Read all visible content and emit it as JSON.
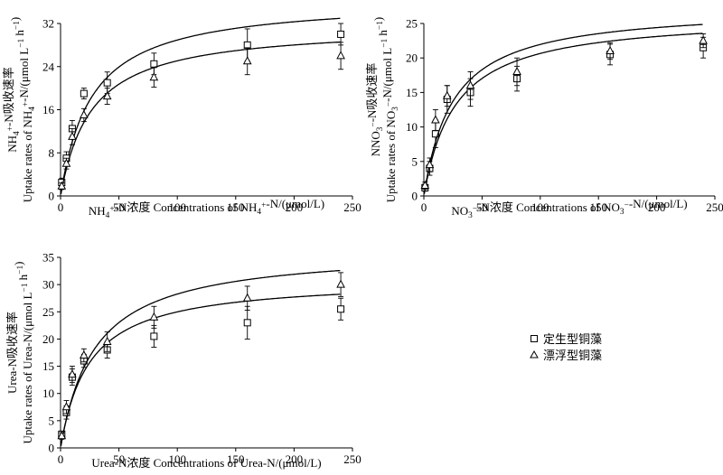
{
  "legend": {
    "items": [
      {
        "label": "定生型铜藻",
        "marker": "square"
      },
      {
        "label": "漂浮型铜藻",
        "marker": "triangle"
      }
    ]
  },
  "chart_data": [
    {
      "type": "scatter",
      "ylabel_lines": [
        "NH4+-N吸收速率",
        "Uptake rates of NH4+-N/(μmol L−1 h−1)"
      ],
      "xlabel": "NH4+-N浓度 Concentrations of NH4+-N/(μmol/L)",
      "xlim": [
        0,
        250
      ],
      "ylim": [
        0,
        32
      ],
      "xticks": [
        0,
        50,
        100,
        150,
        200,
        250
      ],
      "yticks": [
        0,
        8,
        16,
        24,
        32
      ],
      "x": [
        1,
        5,
        10,
        20,
        40,
        80,
        160,
        240
      ],
      "series": [
        {
          "marker": "square",
          "values": [
            2.5,
            7,
            12.5,
            19,
            21,
            24.5,
            28,
            30
          ],
          "errors": [
            0.8,
            1.2,
            1.5,
            1.0,
            2.0,
            2.0,
            3.0,
            2.0
          ],
          "fit": "curve"
        },
        {
          "marker": "triangle",
          "values": [
            1.8,
            6,
            11,
            15,
            18.5,
            22,
            25,
            26
          ],
          "errors": [
            0.6,
            1.0,
            1.5,
            1.2,
            1.5,
            1.8,
            2.5,
            2.5
          ],
          "fit": "curve"
        }
      ]
    },
    {
      "type": "scatter",
      "ylabel_lines": [
        "NNO3−-N吸收速率",
        "Uptake rates of NO3−-N/(μmol L−1 h−1)"
      ],
      "xlabel": "NO3−-N浓度 Concentrations of NO3−-N/(μmol/L)",
      "xlim": [
        0,
        250
      ],
      "ylim": [
        0,
        25
      ],
      "xticks": [
        0,
        50,
        100,
        150,
        200,
        250
      ],
      "yticks": [
        0,
        5,
        10,
        15,
        20,
        25
      ],
      "x": [
        1,
        5,
        10,
        20,
        40,
        80,
        160,
        240
      ],
      "series": [
        {
          "marker": "square",
          "values": [
            1.2,
            4,
            9,
            14,
            15,
            17,
            20.5,
            21.5
          ],
          "errors": [
            0.5,
            1.0,
            2.0,
            2.0,
            2.0,
            1.8,
            1.5,
            1.5
          ],
          "fit": "curve"
        },
        {
          "marker": "triangle",
          "values": [
            1.5,
            4.5,
            11,
            14.5,
            16,
            18,
            21,
            22.5
          ],
          "errors": [
            0.5,
            1.0,
            1.5,
            1.5,
            2.0,
            2.0,
            1.2,
            1.0
          ],
          "fit": "curve"
        }
      ]
    },
    {
      "type": "scatter",
      "ylabel_lines": [
        "Urea-N吸收速率",
        "Uptake rates of Urea-N/(μmol L−1 h−1)"
      ],
      "xlabel": "Urea-N浓度 Concentrations of Urea-N/(μmol/L)",
      "xlim": [
        0,
        250
      ],
      "ylim": [
        0,
        35
      ],
      "xticks": [
        0,
        50,
        100,
        150,
        200,
        250
      ],
      "yticks": [
        0,
        5,
        10,
        15,
        20,
        25,
        30,
        35
      ],
      "x": [
        1,
        5,
        10,
        20,
        40,
        80,
        160,
        240
      ],
      "series": [
        {
          "marker": "square",
          "values": [
            2.5,
            6.5,
            13,
            16,
            18,
            20.5,
            23,
            25.5
          ],
          "errors": [
            0.6,
            1.2,
            1.5,
            1.2,
            1.5,
            2.0,
            3.0,
            2.0
          ],
          "fit": "curve"
        },
        {
          "marker": "triangle",
          "values": [
            2.2,
            7.5,
            13.5,
            17,
            19.5,
            24,
            27.5,
            30
          ],
          "errors": [
            0.6,
            1.2,
            1.5,
            1.2,
            1.8,
            2.0,
            2.2,
            2.2
          ],
          "fit": "curve"
        }
      ]
    }
  ]
}
